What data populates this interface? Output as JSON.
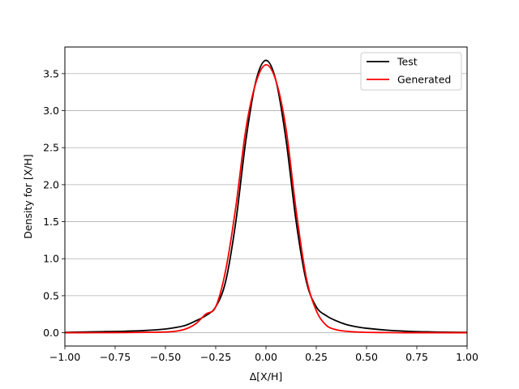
{
  "chart_data": {
    "type": "line",
    "xlabel": "Δ[X/H]",
    "ylabel": "Density for  [X/H]",
    "xlim": [
      -1.0,
      1.0
    ],
    "ylim": [
      -0.18,
      3.86
    ],
    "xticks": [
      -1.0,
      -0.75,
      -0.5,
      -0.25,
      0.0,
      0.25,
      0.5,
      0.75,
      1.0
    ],
    "xtick_labels": [
      "−1.00",
      "−0.75",
      "−0.50",
      "−0.25",
      "0.00",
      "0.25",
      "0.50",
      "0.75",
      "1.00"
    ],
    "yticks": [
      0.0,
      0.5,
      1.0,
      1.5,
      2.0,
      2.5,
      3.0,
      3.5
    ],
    "ytick_labels": [
      "0.0",
      "0.5",
      "1.0",
      "1.5",
      "2.0",
      "2.5",
      "3.0",
      "3.5"
    ],
    "grid": "horizontal",
    "legend_position": "top-right",
    "x": [
      -1.0,
      -0.9,
      -0.8,
      -0.7,
      -0.6,
      -0.5,
      -0.45,
      -0.4,
      -0.35,
      -0.3,
      -0.25,
      -0.2,
      -0.15,
      -0.1,
      -0.05,
      0.0,
      0.05,
      0.1,
      0.15,
      0.2,
      0.25,
      0.3,
      0.35,
      0.4,
      0.45,
      0.5,
      0.6,
      0.7,
      0.8,
      0.9,
      1.0
    ],
    "series": [
      {
        "name": "Test",
        "color": "#000000",
        "values": [
          0.005,
          0.01,
          0.015,
          0.02,
          0.03,
          0.05,
          0.07,
          0.1,
          0.16,
          0.23,
          0.35,
          0.7,
          1.5,
          2.6,
          3.4,
          3.68,
          3.4,
          2.6,
          1.5,
          0.7,
          0.35,
          0.23,
          0.16,
          0.11,
          0.08,
          0.06,
          0.035,
          0.02,
          0.012,
          0.007,
          0.005
        ]
      },
      {
        "name": "Generated",
        "color": "#ff0000",
        "values": [
          0.0,
          0.0,
          0.001,
          0.002,
          0.005,
          0.01,
          0.02,
          0.05,
          0.12,
          0.25,
          0.35,
          0.85,
          1.7,
          2.75,
          3.38,
          3.62,
          3.4,
          2.75,
          1.65,
          0.75,
          0.3,
          0.1,
          0.04,
          0.02,
          0.01,
          0.005,
          0.002,
          0.0,
          0.0,
          0.0,
          0.0
        ]
      }
    ]
  }
}
